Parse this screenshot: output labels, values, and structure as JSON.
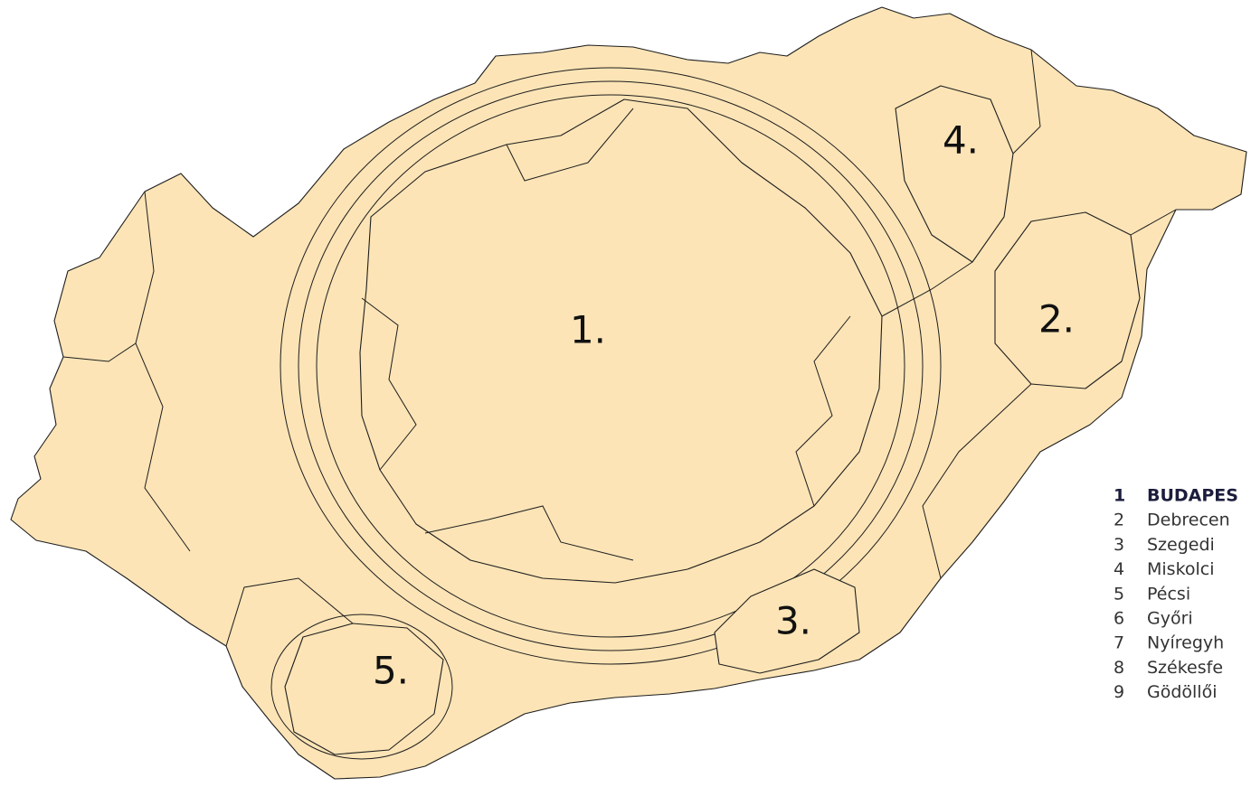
{
  "map_labels": [
    "1.",
    "2.",
    "3.",
    "4.",
    "5."
  ],
  "legend": [
    {
      "number": 1,
      "name": "BUDAPES"
    },
    {
      "number": 2,
      "name": "Debrecen"
    },
    {
      "number": 3,
      "name": "Szegedi"
    },
    {
      "number": 4,
      "name": "Miskolci"
    },
    {
      "number": 5,
      "name": "Pécsi"
    },
    {
      "number": 6,
      "name": "Győri"
    },
    {
      "number": 7,
      "name": "Nyíregyh"
    },
    {
      "number": 8,
      "name": "Székesfe"
    },
    {
      "number": 9,
      "name": "Gödöllői"
    }
  ]
}
